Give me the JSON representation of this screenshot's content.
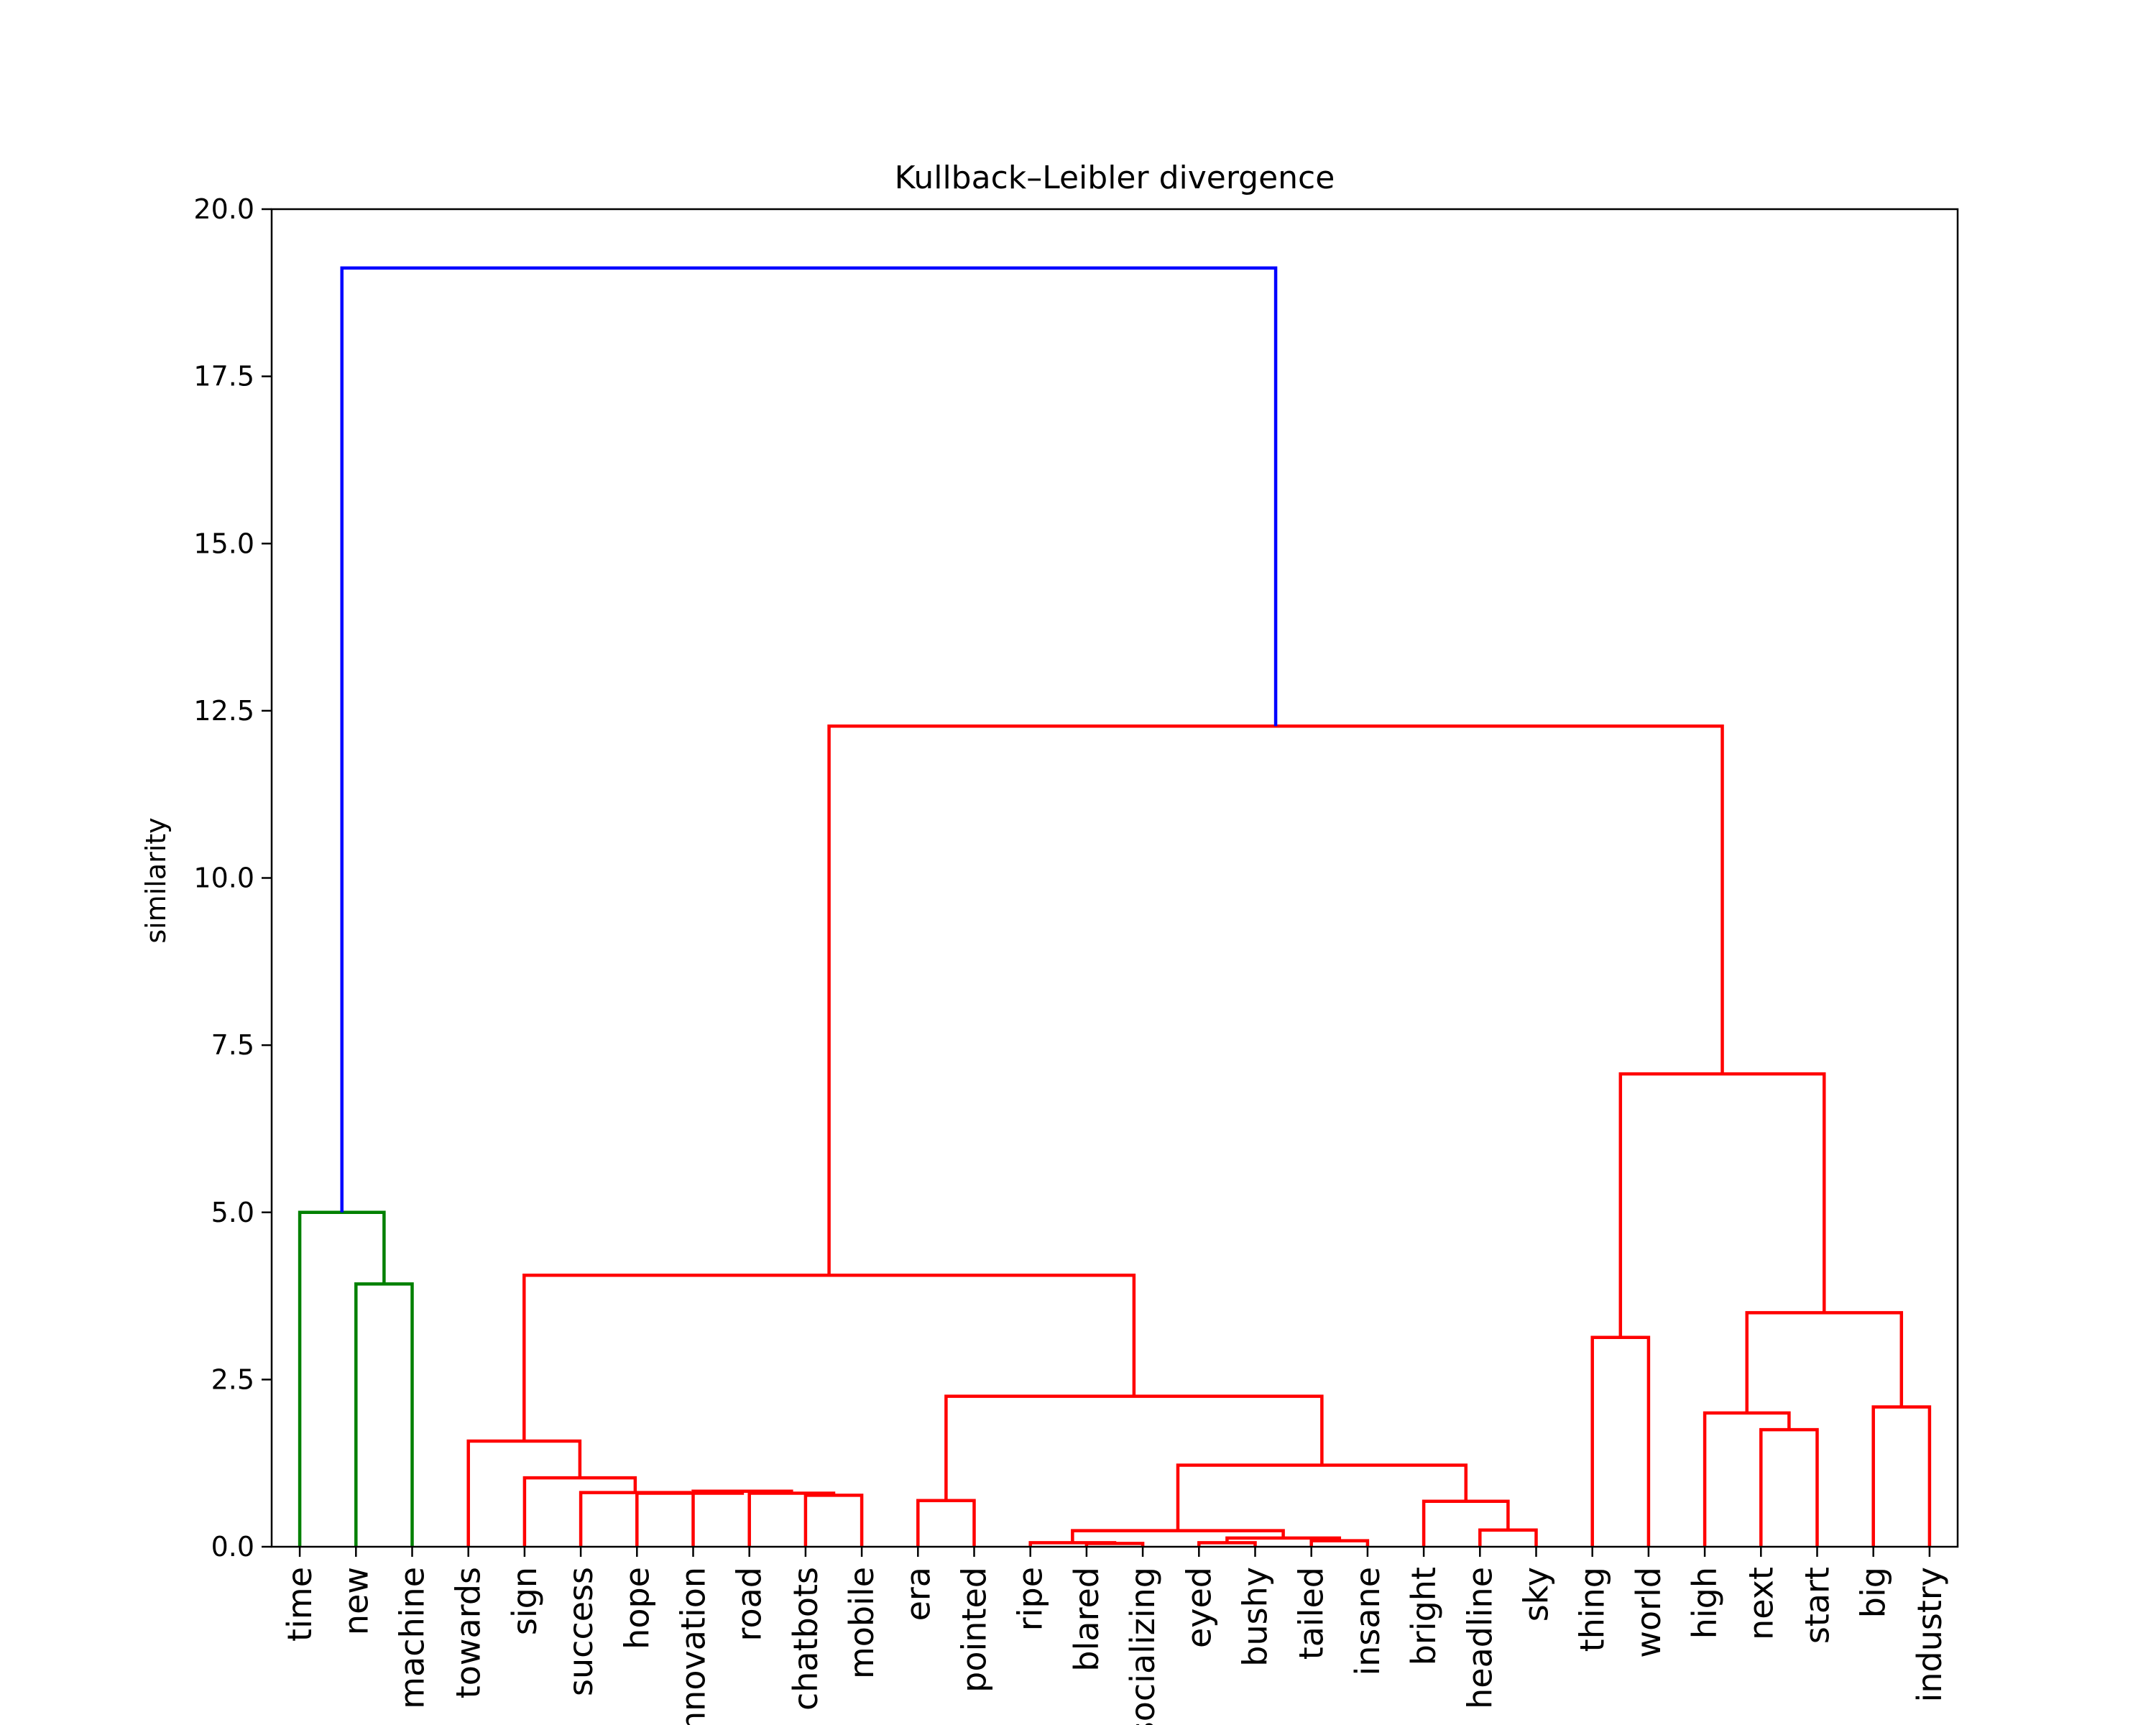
{
  "chart_data": {
    "type": "dendrogram",
    "title": "Kullback–Leibler divergence",
    "ylabel": "similarity",
    "ylim": [
      0,
      20
    ],
    "yticks": [
      0,
      2.5,
      5,
      7.5,
      10,
      12.5,
      15,
      17.5,
      20
    ],
    "ytick_labels": [
      "0.0",
      "2.5",
      "5.0",
      "7.5",
      "10.0",
      "12.5",
      "15.0",
      "17.5",
      "20.0"
    ],
    "grid": false,
    "leaves": [
      "time",
      "new",
      "machine",
      "towards",
      "sign",
      "success",
      "hope",
      "innovation",
      "road",
      "chatbots",
      "mobile",
      "era",
      "pointed",
      "ripe",
      "blared",
      "socializing",
      "eyed",
      "bushy",
      "tailed",
      "insane",
      "bright",
      "headline",
      "sky",
      "thing",
      "world",
      "high",
      "next",
      "start",
      "big",
      "industry"
    ],
    "colors": {
      "green": "#008000",
      "red": "#ff0000",
      "blue": "#0000ff"
    },
    "merges": [
      {
        "id": "m1",
        "left": "L1",
        "right": "L2",
        "height": 3.93,
        "color": "green"
      },
      {
        "id": "m2",
        "left": "L0",
        "right": "m1",
        "height": 5.0,
        "color": "green"
      },
      {
        "id": "m3",
        "left": "L9",
        "right": "L10",
        "height": 0.77,
        "color": "red"
      },
      {
        "id": "m4",
        "left": "L8",
        "right": "m3",
        "height": 0.8,
        "color": "red"
      },
      {
        "id": "m5",
        "left": "L7",
        "right": "m4",
        "height": 0.83,
        "color": "red"
      },
      {
        "id": "m6",
        "left": "L6",
        "right": "m5",
        "height": 0.8,
        "color": "red"
      },
      {
        "id": "m7",
        "left": "L5",
        "right": "m6",
        "height": 0.81,
        "color": "red"
      },
      {
        "id": "m8",
        "left": "L4",
        "right": "m7",
        "height": 1.03,
        "color": "red"
      },
      {
        "id": "m9",
        "left": "L3",
        "right": "m8",
        "height": 1.58,
        "color": "red"
      },
      {
        "id": "m10",
        "left": "L11",
        "right": "L12",
        "height": 0.69,
        "color": "red"
      },
      {
        "id": "m11",
        "left": "L14",
        "right": "L15",
        "height": 0.05,
        "color": "red"
      },
      {
        "id": "m12",
        "left": "L13",
        "right": "m11",
        "height": 0.06,
        "color": "red"
      },
      {
        "id": "m13",
        "left": "L16",
        "right": "L17",
        "height": 0.06,
        "color": "red"
      },
      {
        "id": "m14",
        "left": "L18",
        "right": "L19",
        "height": 0.09,
        "color": "red"
      },
      {
        "id": "m15",
        "left": "m13",
        "right": "m14",
        "height": 0.13,
        "color": "red"
      },
      {
        "id": "m16",
        "left": "m12",
        "right": "m15",
        "height": 0.24,
        "color": "red"
      },
      {
        "id": "m17",
        "left": "L21",
        "right": "L22",
        "height": 0.25,
        "color": "red"
      },
      {
        "id": "m18",
        "left": "L20",
        "right": "m17",
        "height": 0.68,
        "color": "red"
      },
      {
        "id": "m19",
        "left": "m16",
        "right": "m18",
        "height": 1.22,
        "color": "red"
      },
      {
        "id": "m20",
        "left": "m10",
        "right": "m19",
        "height": 2.25,
        "color": "red"
      },
      {
        "id": "m21",
        "left": "m9",
        "right": "m20",
        "height": 4.06,
        "color": "red"
      },
      {
        "id": "m22",
        "left": "L23",
        "right": "L24",
        "height": 3.13,
        "color": "red"
      },
      {
        "id": "m23",
        "left": "L26",
        "right": "L27",
        "height": 1.75,
        "color": "red"
      },
      {
        "id": "m24",
        "left": "L25",
        "right": "m23",
        "height": 2.0,
        "color": "red"
      },
      {
        "id": "m25",
        "left": "L28",
        "right": "L29",
        "height": 2.09,
        "color": "red"
      },
      {
        "id": "m26",
        "left": "m24",
        "right": "m25",
        "height": 3.5,
        "color": "red"
      },
      {
        "id": "m27",
        "left": "m22",
        "right": "m26",
        "height": 7.07,
        "color": "red"
      },
      {
        "id": "m28",
        "left": "m21",
        "right": "m27",
        "height": 12.27,
        "color": "red"
      },
      {
        "id": "m29",
        "left": "m2",
        "right": "m28",
        "height": 19.12,
        "color": "blue"
      }
    ]
  }
}
